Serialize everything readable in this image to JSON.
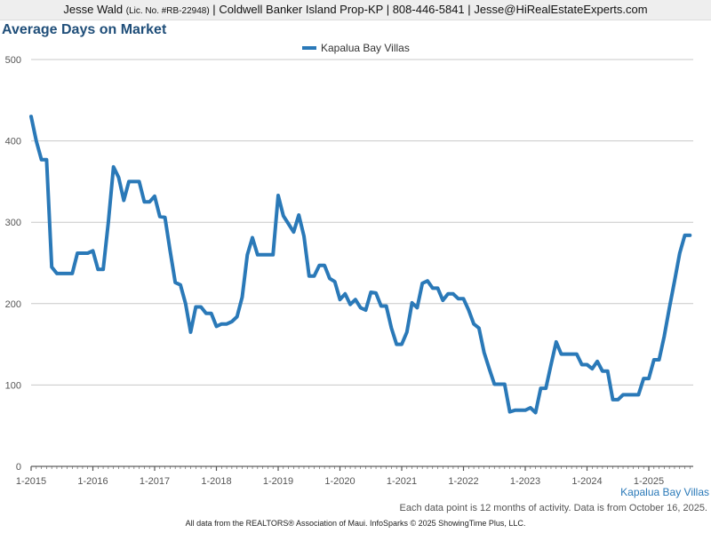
{
  "header": {
    "agent_name": "Jesse Wald",
    "license": "(Lic. No. #RB-22948)",
    "brokerage": "Coldwell Banker Island Prop-KP",
    "phone": "808-446-5841",
    "email": "Jesse@HiRealEstateExperts.com",
    "separator": "|"
  },
  "footer": {
    "note": "Each data point is 12 months of activity. Data is from October 16, 2025.",
    "source": "All data from the REALTORS® Association of Maui. InfoSparks © 2025 ShowingTime Plus, LLC."
  },
  "colors": {
    "series": "#2a79b8",
    "title": "#1f4e79",
    "grid": "#c8c8c8"
  },
  "chart_data": {
    "type": "line",
    "title": "Average Days on Market",
    "xlabel": "",
    "ylabel": "",
    "ylim": [
      0,
      500
    ],
    "yticks": [
      0,
      100,
      200,
      300,
      400,
      500
    ],
    "x_tick_labels": [
      "1-2015",
      "1-2016",
      "1-2017",
      "1-2018",
      "1-2019",
      "1-2020",
      "1-2021",
      "1-2022",
      "1-2023",
      "1-2024",
      "1-2025"
    ],
    "x_start": "2015-01",
    "grid": true,
    "legend_position": "top-center",
    "end_label": "Kapalua Bay Villas",
    "series": [
      {
        "name": "Kapalua Bay Villas",
        "values": [
          430,
          400,
          377,
          377,
          245,
          237,
          237,
          237,
          237,
          262,
          262,
          262,
          265,
          242,
          242,
          300,
          368,
          355,
          327,
          350,
          350,
          350,
          325,
          325,
          332,
          307,
          306,
          265,
          226,
          223,
          200,
          165,
          196,
          196,
          188,
          188,
          172,
          175,
          175,
          178,
          184,
          208,
          260,
          281,
          260,
          260,
          260,
          260,
          333,
          308,
          298,
          288,
          309,
          283,
          234,
          234,
          247,
          247,
          231,
          227,
          205,
          212,
          199,
          205,
          195,
          192,
          214,
          213,
          197,
          197,
          170,
          150,
          150,
          165,
          201,
          195,
          225,
          228,
          219,
          219,
          204,
          212,
          212,
          206,
          206,
          192,
          175,
          170,
          140,
          120,
          101,
          101,
          101,
          67,
          69,
          69,
          69,
          72,
          66,
          96,
          96,
          125,
          153,
          138,
          138,
          138,
          138,
          125,
          125,
          120,
          129,
          117,
          117,
          82,
          82,
          88,
          88,
          88,
          88,
          108,
          108,
          131,
          131,
          160,
          195,
          228,
          262,
          284,
          284
        ]
      }
    ]
  }
}
